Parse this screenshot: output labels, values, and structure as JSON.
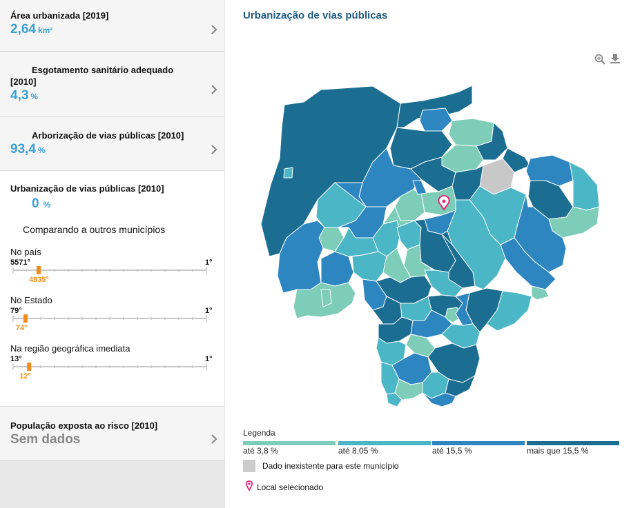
{
  "cards": {
    "area": {
      "title": "Área urbanizada [2019]",
      "value": "2,64",
      "unit": "km²"
    },
    "esgoto": {
      "title_line1": "Esgotamento sanitário adequado",
      "title_line2": "[2010]",
      "value": "4,3",
      "unit": "%"
    },
    "arborizacao": {
      "title": "Arborização de vias públicas [2010]",
      "value": "93,4",
      "unit": "%"
    },
    "urbanizacao": {
      "title": "Urbanização de vias públicas [2010]",
      "value": "0",
      "unit": "%",
      "compare_label": "Comparando a outros municípios",
      "rankings": [
        {
          "label": "No país",
          "left": "5571°",
          "right": "1°",
          "marker": "4835°",
          "fraction": 0.132
        },
        {
          "label": "No Estado",
          "left": "79°",
          "right": "1°",
          "marker": "74°",
          "fraction": 0.064
        },
        {
          "label": "Na região geográfica imediata",
          "left": "13°",
          "right": "1°",
          "marker": "12°",
          "fraction": 0.083
        }
      ]
    },
    "populacao": {
      "title": "População exposta ao risco [2010]",
      "value": "Sem dados"
    }
  },
  "map": {
    "title": "Urbanização de vias públicas",
    "zoom_icon": "zoom-in-icon",
    "download_icon": "download-icon",
    "colors": {
      "c1": "#7ecdb8",
      "c2": "#4bb6c6",
      "c3": "#2e86c1",
      "c4": "#1b6e92",
      "na": "#c8c8c8",
      "pin": "#e0287a"
    }
  },
  "legend": {
    "title": "Legenda",
    "items": [
      {
        "label": "até 3,8 %",
        "color": "#7ecdb8"
      },
      {
        "label": "até 8,05 %",
        "color": "#4bb6c6"
      },
      {
        "label": "até 15,5 %",
        "color": "#2e86c1"
      },
      {
        "label": "mais que 15,5 %",
        "color": "#1b6e92"
      }
    ],
    "na_label": "Dado inexistente para este município",
    "selected_label": "Local selecionado"
  }
}
